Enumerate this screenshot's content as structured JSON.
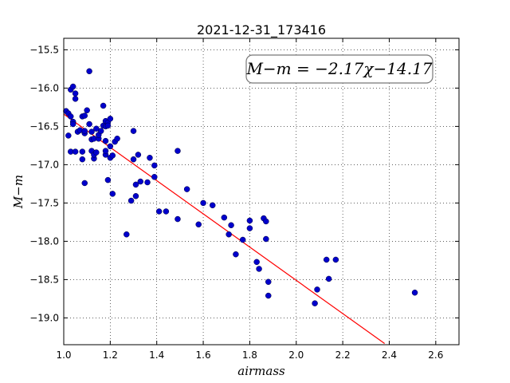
{
  "chart_data": {
    "type": "scatter",
    "title": "2021-12-31_173416",
    "xlabel": "airmass",
    "ylabel": "M−m",
    "xlim": [
      1.0,
      2.7
    ],
    "ylim": [
      -19.35,
      -15.35
    ],
    "y_inverted": true,
    "grid": true,
    "x_ticks": [
      "1.0",
      "1.2",
      "1.4",
      "1.6",
      "1.8",
      "2.0",
      "2.2",
      "2.4",
      "2.6"
    ],
    "y_ticks": [
      "−15.5",
      "−16.0",
      "−16.5",
      "−17.0",
      "−17.5",
      "−18.0",
      "−18.5",
      "−19.0"
    ],
    "annotation": "M−m = −2.17χ−14.17",
    "fit": {
      "slope": -2.17,
      "intercept": -14.17,
      "x_range": [
        1.0,
        2.38
      ],
      "color": "#ff0000"
    },
    "point_color": "#0000cc",
    "points": [
      [
        1.01,
        -16.3
      ],
      [
        1.02,
        -16.62
      ],
      [
        1.02,
        -16.33
      ],
      [
        1.03,
        -16.37
      ],
      [
        1.03,
        -16.02
      ],
      [
        1.03,
        -16.83
      ],
      [
        1.04,
        -16.44
      ],
      [
        1.04,
        -16.47
      ],
      [
        1.04,
        -15.98
      ],
      [
        1.05,
        -16.07
      ],
      [
        1.05,
        -16.83
      ],
      [
        1.05,
        -16.14
      ],
      [
        1.06,
        -16.57
      ],
      [
        1.07,
        -16.55
      ],
      [
        1.08,
        -16.37
      ],
      [
        1.08,
        -16.93
      ],
      [
        1.08,
        -16.83
      ],
      [
        1.09,
        -17.24
      ],
      [
        1.09,
        -16.36
      ],
      [
        1.09,
        -16.59
      ],
      [
        1.09,
        -16.56
      ],
      [
        1.1,
        -16.29
      ],
      [
        1.11,
        -15.78
      ],
      [
        1.11,
        -16.47
      ],
      [
        1.12,
        -16.82
      ],
      [
        1.12,
        -16.57
      ],
      [
        1.12,
        -16.67
      ],
      [
        1.13,
        -16.66
      ],
      [
        1.13,
        -16.92
      ],
      [
        1.13,
        -16.87
      ],
      [
        1.14,
        -16.53
      ],
      [
        1.14,
        -16.84
      ],
      [
        1.15,
        -16.66
      ],
      [
        1.15,
        -16.61
      ],
      [
        1.16,
        -16.56
      ],
      [
        1.17,
        -16.23
      ],
      [
        1.17,
        -16.49
      ],
      [
        1.18,
        -16.5
      ],
      [
        1.18,
        -16.43
      ],
      [
        1.18,
        -16.69
      ],
      [
        1.18,
        -16.87
      ],
      [
        1.18,
        -16.82
      ],
      [
        1.19,
        -16.45
      ],
      [
        1.19,
        -16.49
      ],
      [
        1.19,
        -17.2
      ],
      [
        1.2,
        -16.76
      ],
      [
        1.2,
        -16.91
      ],
      [
        1.2,
        -16.4
      ],
      [
        1.21,
        -17.38
      ],
      [
        1.21,
        -16.88
      ],
      [
        1.22,
        -16.7
      ],
      [
        1.23,
        -16.66
      ],
      [
        1.27,
        -17.91
      ],
      [
        1.29,
        -17.47
      ],
      [
        1.3,
        -16.93
      ],
      [
        1.3,
        -16.56
      ],
      [
        1.31,
        -17.41
      ],
      [
        1.31,
        -17.26
      ],
      [
        1.32,
        -16.87
      ],
      [
        1.33,
        -17.22
      ],
      [
        1.36,
        -17.23
      ],
      [
        1.37,
        -16.91
      ],
      [
        1.39,
        -17.16
      ],
      [
        1.39,
        -17.01
      ],
      [
        1.41,
        -17.61
      ],
      [
        1.44,
        -17.61
      ],
      [
        1.49,
        -17.71
      ],
      [
        1.49,
        -16.82
      ],
      [
        1.53,
        -17.32
      ],
      [
        1.58,
        -17.78
      ],
      [
        1.6,
        -17.5
      ],
      [
        1.64,
        -17.53
      ],
      [
        1.69,
        -17.69
      ],
      [
        1.71,
        -17.91
      ],
      [
        1.72,
        -17.79
      ],
      [
        1.74,
        -18.17
      ],
      [
        1.77,
        -17.98
      ],
      [
        1.8,
        -17.73
      ],
      [
        1.8,
        -17.83
      ],
      [
        1.83,
        -18.27
      ],
      [
        1.84,
        -18.36
      ],
      [
        1.86,
        -17.7
      ],
      [
        1.87,
        -17.74
      ],
      [
        1.87,
        -17.97
      ],
      [
        1.88,
        -18.53
      ],
      [
        1.88,
        -18.71
      ],
      [
        2.08,
        -18.81
      ],
      [
        2.09,
        -18.63
      ],
      [
        2.13,
        -18.24
      ],
      [
        2.14,
        -18.49
      ],
      [
        2.17,
        -18.24
      ],
      [
        2.51,
        -18.67
      ]
    ]
  }
}
